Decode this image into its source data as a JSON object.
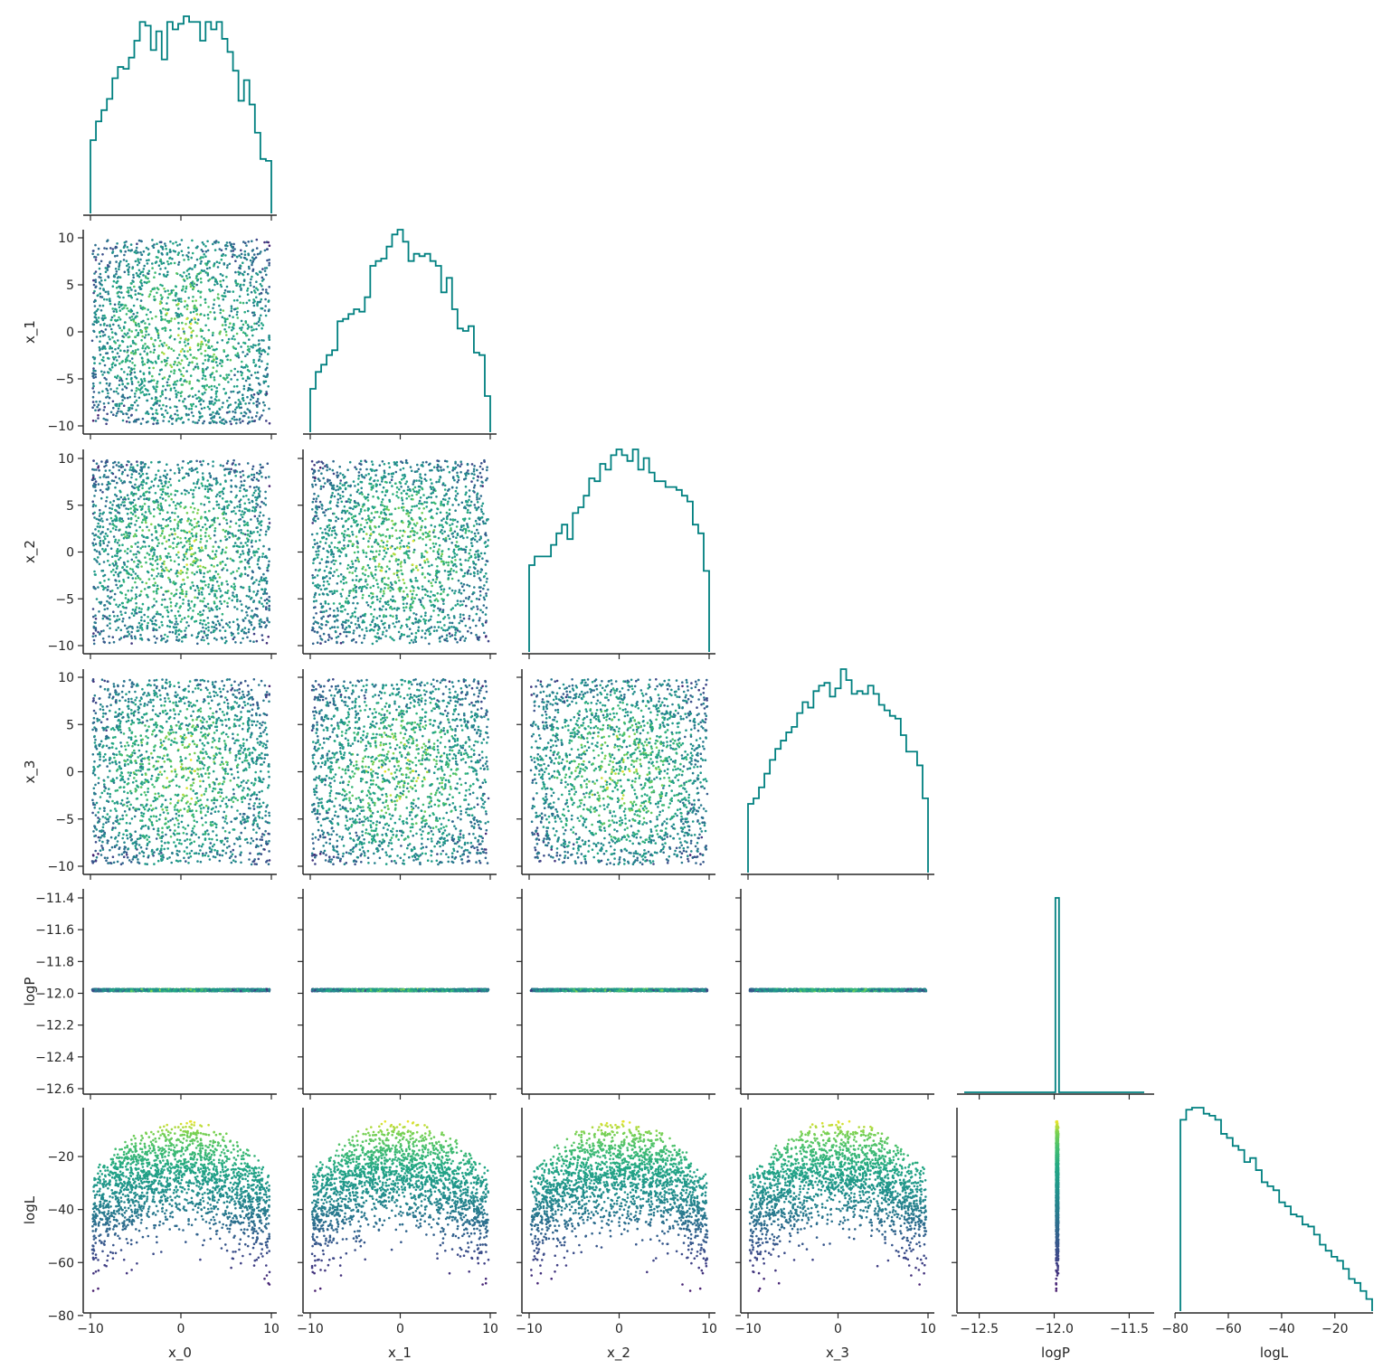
{
  "chart_data": {
    "type": "pairplot",
    "variables": [
      "x_0",
      "x_1",
      "x_2",
      "x_3",
      "logP",
      "logL"
    ],
    "layout": "lower-triangle corner plot; diagonal = step histograms, off-diagonal = scatter colored by logL",
    "colors": {
      "histogram": "#008080",
      "colormap": "viridis",
      "axes": "#262626"
    },
    "ranges": {
      "x_0": [
        -10,
        10
      ],
      "x_1": [
        -10,
        10
      ],
      "x_2": [
        -10,
        10
      ],
      "x_3": [
        -10,
        10
      ],
      "logP": [
        -12.6,
        -11.4
      ],
      "logL": [
        -78,
        -6
      ]
    },
    "x_ticks": {
      "x_0": [
        "−10",
        "0",
        "10"
      ],
      "x_1": [
        "−10",
        "0",
        "10"
      ],
      "x_2": [
        "−10",
        "0",
        "10"
      ],
      "x_3": [
        "−10",
        "0",
        "10"
      ],
      "logP": [
        "−12.5",
        "−12.0",
        "−11.5"
      ],
      "logL": [
        "−80",
        "−60",
        "−40",
        "−20"
      ]
    },
    "y_ticks": {
      "x_1": [
        "10",
        "5",
        "0",
        "−5",
        "−10"
      ],
      "x_2": [
        "10",
        "5",
        "0",
        "−5",
        "−10"
      ],
      "x_3": [
        "10",
        "5",
        "0",
        "−5",
        "−10"
      ],
      "logP": [
        "−11.4",
        "−11.6",
        "−11.8",
        "−12.0",
        "−12.2",
        "−12.4",
        "−12.6"
      ],
      "logL": [
        "−20",
        "−40",
        "−60",
        "−80"
      ]
    },
    "sample_description": {
      "x_i": "uniform on [-10, 10], about 2000 samples",
      "logP": "constant at -11.98 (all samples)",
      "logL": "-0.5 * sum(x_i^2)/2 style quadratic, range about -78 to -6"
    },
    "histograms": {
      "x_0": [
        39,
        49,
        55,
        61,
        72,
        78,
        77,
        83,
        92,
        102,
        100,
        87,
        97,
        82,
        102,
        98,
        101,
        105,
        102,
        102,
        92,
        102,
        98,
        102,
        93,
        86,
        76,
        60,
        71,
        58,
        43,
        29,
        28
      ],
      "x_1": [
        18,
        25,
        28,
        32,
        34,
        46,
        47,
        49,
        51,
        50,
        56,
        69,
        71,
        72,
        77,
        82,
        84,
        79,
        71,
        74,
        73,
        74,
        71,
        69,
        58,
        64,
        51,
        43,
        42,
        44,
        33,
        32,
        15
      ],
      "x_2": [
        30,
        33,
        33,
        33,
        37,
        41,
        44,
        39,
        48,
        50,
        54,
        60,
        59,
        65,
        63,
        68,
        70,
        68,
        66,
        70,
        63,
        67,
        62,
        59,
        59,
        57,
        57,
        56,
        54,
        52,
        44,
        41,
        28
      ],
      "x_3": [
        25,
        27,
        31,
        36,
        41,
        45,
        48,
        51,
        53,
        58,
        62,
        60,
        66,
        68,
        69,
        64,
        67,
        74,
        70,
        65,
        66,
        65,
        68,
        65,
        61,
        59,
        57,
        56,
        50,
        44,
        44,
        39,
        27
      ],
      "logP": {
        "bin": -11.98,
        "peak_only": true
      },
      "logL": [
        95,
        100,
        101,
        101,
        98,
        97,
        95,
        88,
        86,
        82,
        80,
        74,
        76,
        70,
        64,
        62,
        60,
        54,
        52,
        48,
        47,
        43,
        42,
        38,
        33,
        30,
        27,
        25,
        21,
        16,
        14,
        10,
        6
      ]
    }
  }
}
